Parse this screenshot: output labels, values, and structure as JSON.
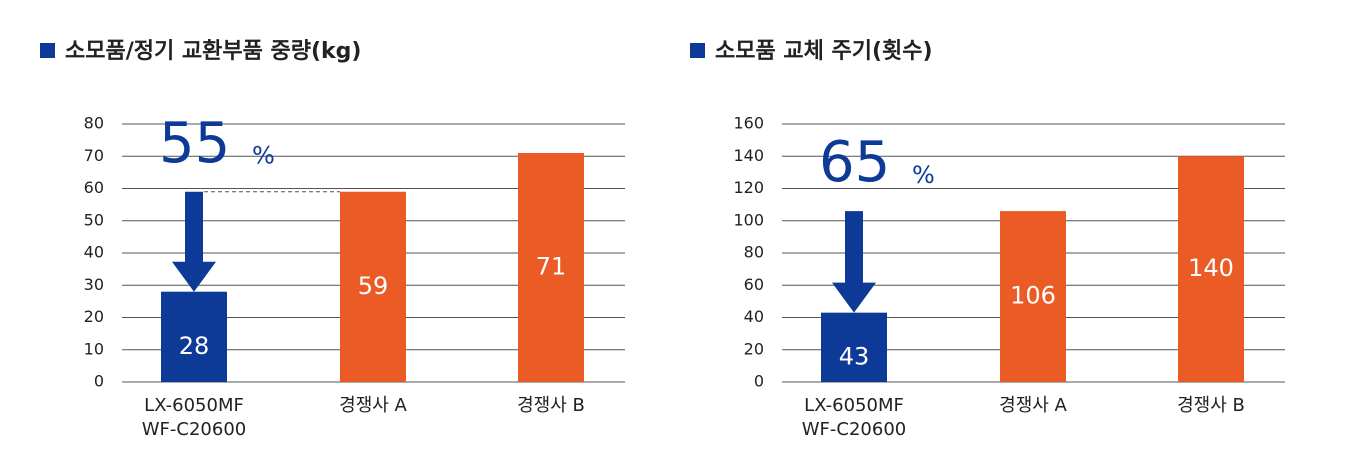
{
  "chart_data": [
    {
      "type": "bar",
      "title": "소모품/정기 교환부품 중량(kg)",
      "categories": [
        "LX-6050MF\nWF-C20600",
        "경쟁사 A",
        "경쟁사 B"
      ],
      "values": [
        28,
        59,
        71
      ],
      "colors": [
        "#0d3a97",
        "#eb5b26",
        "#eb5b26"
      ],
      "ylim": [
        0,
        80
      ],
      "yticks": [
        0,
        10,
        20,
        30,
        40,
        50,
        60,
        70,
        80
      ],
      "grid": true,
      "annotation": "55",
      "annotation_unit": "%"
    },
    {
      "type": "bar",
      "title": "소모품 교체 주기(횟수)",
      "categories": [
        "LX-6050MF\nWF-C20600",
        "경쟁사 A",
        "경쟁사 B"
      ],
      "values": [
        43,
        106,
        140
      ],
      "colors": [
        "#0d3a97",
        "#eb5b26",
        "#eb5b26"
      ],
      "ylim": [
        0,
        160
      ],
      "yticks": [
        0,
        20,
        40,
        60,
        80,
        100,
        120,
        140,
        160
      ],
      "grid": true,
      "annotation": "65",
      "annotation_unit": "%"
    }
  ]
}
